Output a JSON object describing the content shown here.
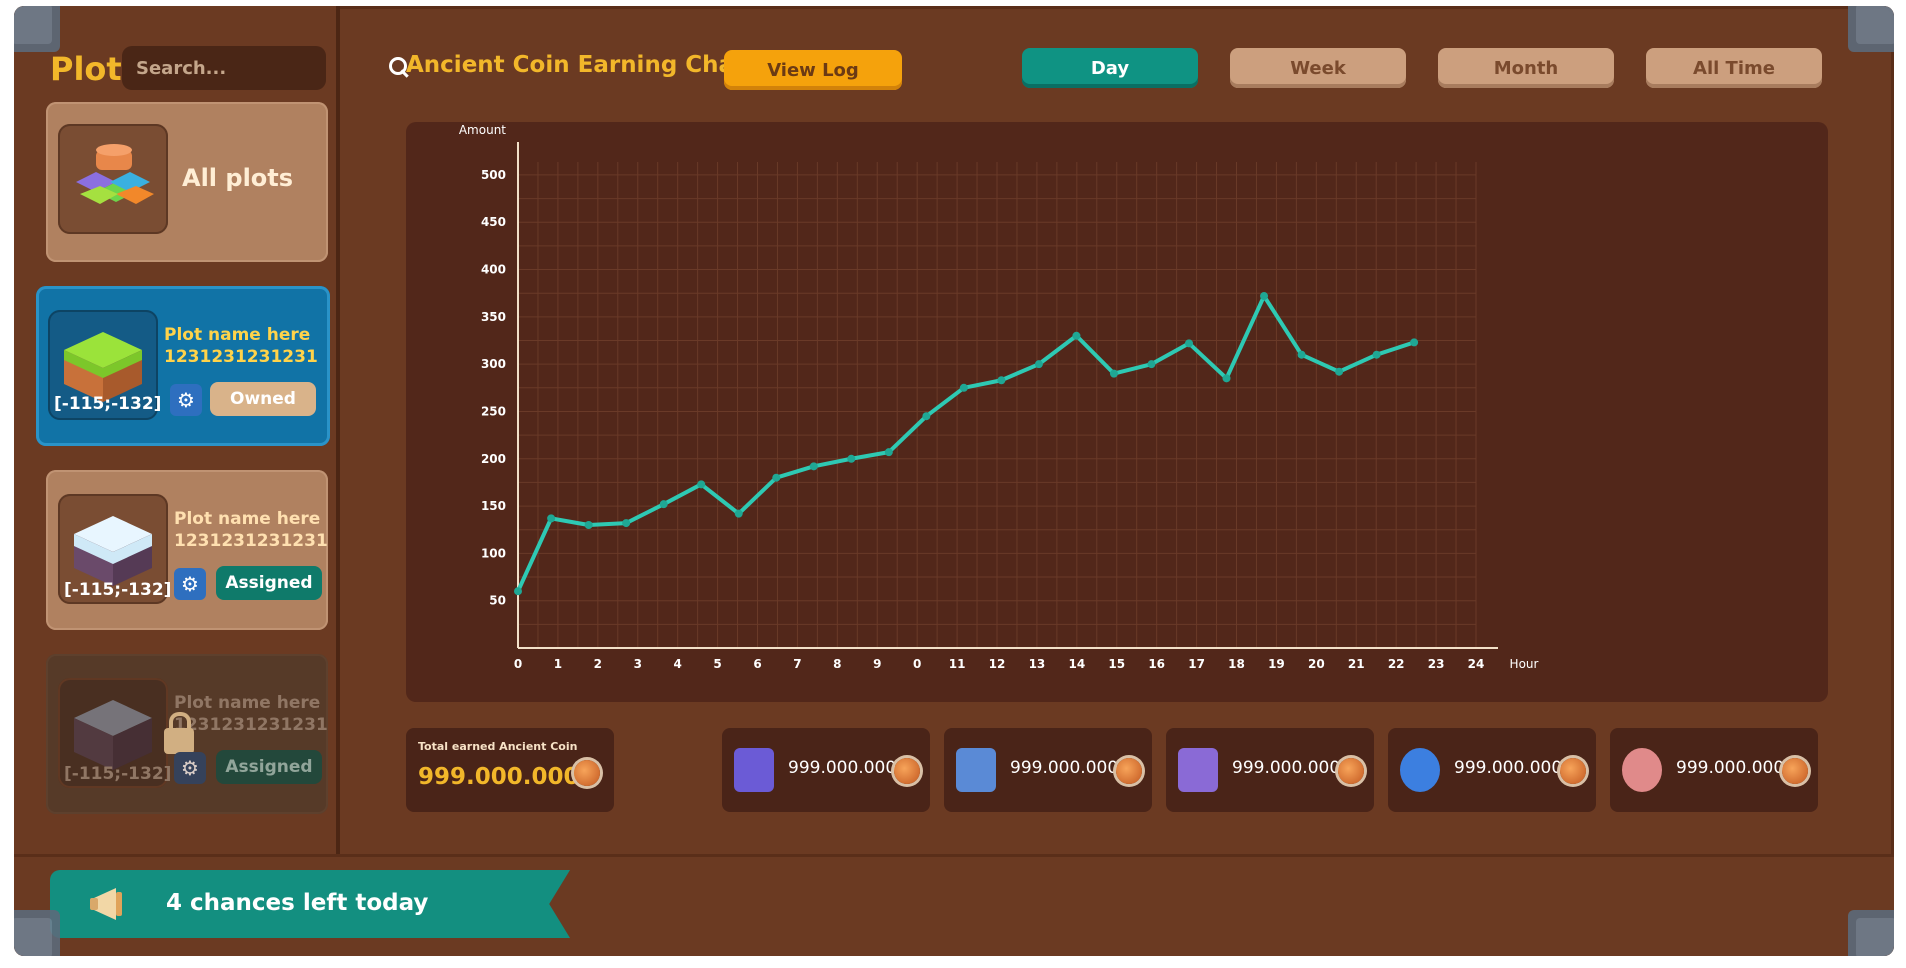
{
  "sidebar": {
    "title": "Plot",
    "search_placeholder": "Search...",
    "all_plots_label": "All plots",
    "plots": [
      {
        "name": "Plot name here",
        "id": "1231231231231",
        "coord": "[-115;-132]",
        "status": "Owned"
      },
      {
        "name": "Plot name here",
        "id": "1231231231231",
        "coord": "[-115;-132]",
        "status": "Assigned"
      },
      {
        "name": "Plot name here",
        "id": "1231231231231",
        "coord": "[-115;-132]",
        "status": "Assigned"
      }
    ]
  },
  "header": {
    "title": "Ancient Coin Earning Chart",
    "view_log": "View Log",
    "tabs": [
      "Day",
      "Week",
      "Month",
      "All Time"
    ],
    "active_tab": "Day"
  },
  "chart_data": {
    "type": "line",
    "ylabel": "Amount",
    "xlabel": "Hour",
    "x_ticks": [
      "0",
      "1",
      "2",
      "3",
      "4",
      "5",
      "6",
      "7",
      "8",
      "9",
      "0",
      "11",
      "12",
      "13",
      "14",
      "15",
      "16",
      "17",
      "18",
      "19",
      "20",
      "21",
      "22",
      "23",
      "24"
    ],
    "y_ticks": [
      50,
      100,
      150,
      200,
      250,
      300,
      350,
      400,
      450,
      500
    ],
    "ylim": [
      0,
      520
    ],
    "series": [
      {
        "values": [
          60,
          137,
          130,
          132,
          152,
          173,
          142,
          180,
          192,
          200,
          207,
          245,
          275,
          283,
          300,
          330,
          290,
          300,
          322,
          285,
          372,
          310,
          292,
          310,
          323
        ]
      }
    ],
    "x_positions": [
      0,
      0.83,
      1.77,
      2.71,
      3.65,
      4.59,
      5.53,
      6.47,
      7.41,
      8.35,
      9.29,
      10.23,
      11.17,
      12.11,
      13.05,
      13.99,
      14.93,
      15.87,
      16.81,
      17.75,
      18.69,
      19.63,
      20.57,
      21.51,
      22.45
    ],
    "color": "#2ec9b3"
  },
  "summary": {
    "total_label": "Total earned Ancient Coin",
    "total_value": "999.000.000",
    "stats": [
      "999.000.000",
      "999.000.000",
      "999.000.000",
      "999.000.000",
      "999.000.000"
    ]
  },
  "bottom": {
    "chances_text": "4 chances left today"
  }
}
